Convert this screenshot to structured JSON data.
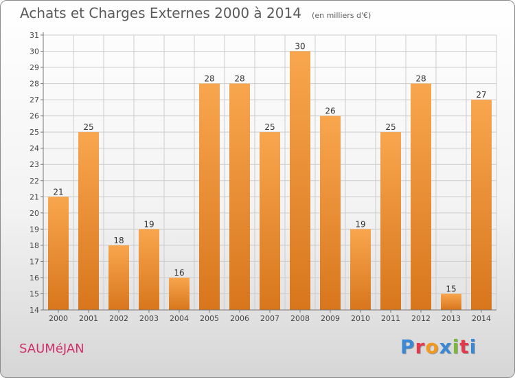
{
  "header": {
    "title": "Achats et Charges Externes 2000 à 2014",
    "subtitle": "(en milliers d'€)"
  },
  "footer": {
    "commune": "SAUMéJAN",
    "brand": "Proxiti",
    "brand_colors": [
      "#3a88d6",
      "#e23a4b",
      "#f39a1e",
      "#3a88d6",
      "#7ab83a",
      "#e23a4b",
      "#3a88d6"
    ]
  },
  "chart_data": {
    "type": "bar",
    "title": "Achats et Charges Externes 2000 à 2014",
    "subtitle": "(en milliers d'€)",
    "xlabel": "",
    "ylabel": "",
    "categories": [
      "2000",
      "2001",
      "2002",
      "2003",
      "2004",
      "2005",
      "2006",
      "2007",
      "2008",
      "2009",
      "2010",
      "2011",
      "2012",
      "2013",
      "2014"
    ],
    "values": [
      21,
      25,
      18,
      19,
      16,
      28,
      28,
      25,
      30,
      26,
      19,
      25,
      28,
      15,
      27
    ],
    "ylim": [
      14,
      31
    ],
    "yticks": [
      14,
      15,
      16,
      17,
      18,
      19,
      20,
      21,
      22,
      23,
      24,
      25,
      26,
      27,
      28,
      29,
      30,
      31
    ],
    "grid": true,
    "bar_color_light": "#f8a64e",
    "bar_color_dark": "#d8761c",
    "grid_color": "#cccccc"
  }
}
